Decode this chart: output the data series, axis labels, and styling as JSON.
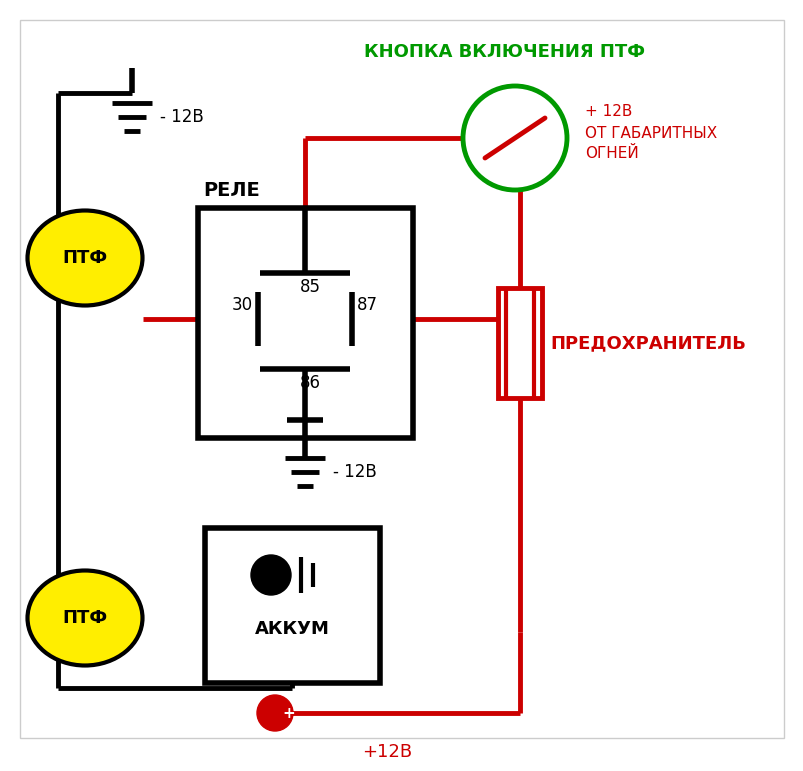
{
  "bg_color": "#ffffff",
  "outer_bg": "#f0ece8",
  "red": "#cc0000",
  "black": "#000000",
  "green": "#009900",
  "yellow": "#ffee00",
  "label_relay": "РЕЛЕ",
  "label_battery": "АККУМ",
  "label_ptf": "ПТФ",
  "label_button": "КНОПКА ВКЛЮЧЕНИЯ ПТФ",
  "label_fuse": "ПРЕДОХРАНИТЕЛЬ",
  "label_85": "85",
  "label_87": "87",
  "label_30": "30",
  "label_86": "86",
  "label_minus12v_top": "- 12В",
  "label_minus12v_bot": "- 12В",
  "label_plus12v_right": "+ 12В\nОТ ГАБАРИТНЫХ\nОГНЕЙ",
  "label_plus12v_bot": "+12В"
}
